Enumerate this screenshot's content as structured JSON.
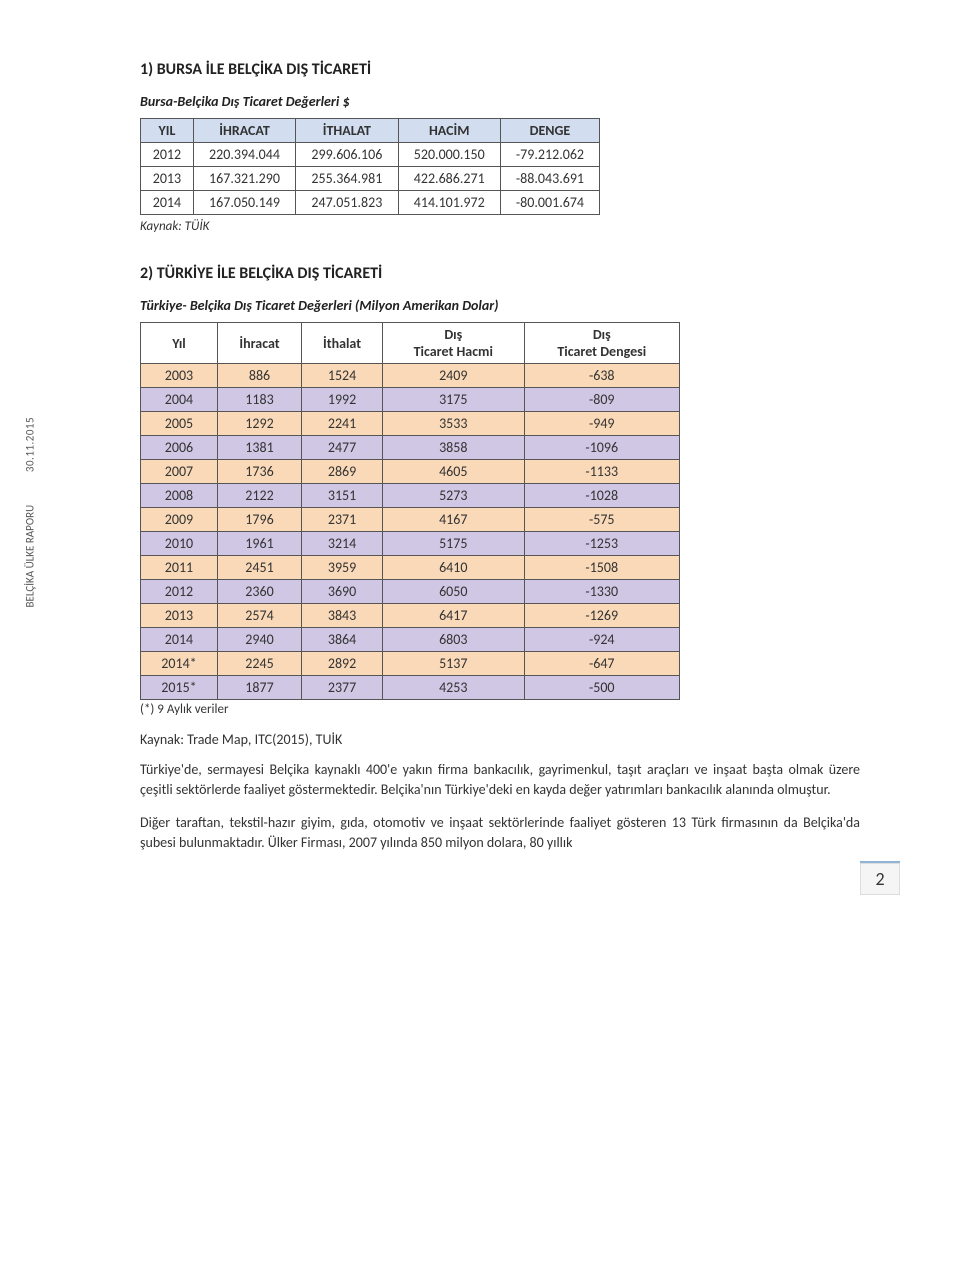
{
  "sidebar": {
    "date": "30.11.2015",
    "report_label": "BELÇİKA ÜLKE RAPORU"
  },
  "section1": {
    "title": "1) BURSA İLE BELÇİKA DIŞ TİCARETİ",
    "subtitle": "Bursa-Belçika Dış Ticaret Değerleri $"
  },
  "table1": {
    "type": "table",
    "header_bg": "#d2def0",
    "row_colors": [
      "#ffffff",
      "#ffffff",
      "#ffffff"
    ],
    "columns": [
      "YIL",
      "İHRACAT",
      "İTHALAT",
      "HACİM",
      "DENGE"
    ],
    "rows": [
      [
        "2012",
        "220.394.044",
        "299.606.106",
        "520.000.150",
        "-79.212.062"
      ],
      [
        "2013",
        "167.321.290",
        "255.364.981",
        "422.686.271",
        "-88.043.691"
      ],
      [
        "2014",
        "167.050.149",
        "247.051.823",
        "414.101.972",
        "-80.001.674"
      ]
    ],
    "source": "Kaynak: TÜİK"
  },
  "section2": {
    "title": "2) TÜRKİYE İLE BELÇİKA DIŞ TİCARETİ",
    "subtitle": "Türkiye- Belçika Dış Ticaret Değerleri (Milyon Amerikan Dolar)"
  },
  "table2": {
    "type": "table",
    "alt_colors": [
      "#f9d9b8",
      "#cfc7e4"
    ],
    "columns": [
      "Yıl",
      "İhracat",
      "İthalat",
      "Dış Ticaret Hacmi",
      "Dış Ticaret Dengesi"
    ],
    "rows": [
      [
        "2003",
        "886",
        "1524",
        "2409",
        "-638"
      ],
      [
        "2004",
        "1183",
        "1992",
        "3175",
        "-809"
      ],
      [
        "2005",
        "1292",
        "2241",
        "3533",
        "-949"
      ],
      [
        "2006",
        "1381",
        "2477",
        "3858",
        "-1096"
      ],
      [
        "2007",
        "1736",
        "2869",
        "4605",
        "-1133"
      ],
      [
        "2008",
        "2122",
        "3151",
        "5273",
        "-1028"
      ],
      [
        "2009",
        "1796",
        "2371",
        "4167",
        "-575"
      ],
      [
        "2010",
        "1961",
        "3214",
        "5175",
        "-1253"
      ],
      [
        "2011",
        "2451",
        "3959",
        "6410",
        "-1508"
      ],
      [
        "2012",
        "2360",
        "3690",
        "6050",
        "-1330"
      ],
      [
        "2013",
        "2574",
        "3843",
        "6417",
        "-1269"
      ],
      [
        "2014",
        "2940",
        "3864",
        "6803",
        "-924"
      ],
      [
        "2014*",
        "2245",
        "2892",
        "5137",
        "-647"
      ],
      [
        "2015*",
        "1877",
        "2377",
        "4253",
        "-500"
      ]
    ],
    "footnote": "(*) 9 Aylık veriler",
    "source": "Kaynak: Trade Map, ITC(2015), TUİK"
  },
  "paragraphs": {
    "p1": "Türkiye'de, sermayesi Belçika kaynaklı 400'e yakın firma bankacılık, gayrimenkul, taşıt araçları ve inşaat başta olmak üzere çeşitli sektörlerde faaliyet göstermektedir. Belçika'nın Türkiye'deki en kayda değer yatırımları bankacılık alanında olmuştur.",
    "p2": "Diğer taraftan, tekstil-hazır giyim, gıda, otomotiv ve inşaat sektörlerinde faaliyet gösteren 13 Türk firmasının da Belçika'da şubesi bulunmaktadır. Ülker Firması, 2007 yılında 850 milyon dolara, 80 yıllık"
  },
  "page_number": "2"
}
